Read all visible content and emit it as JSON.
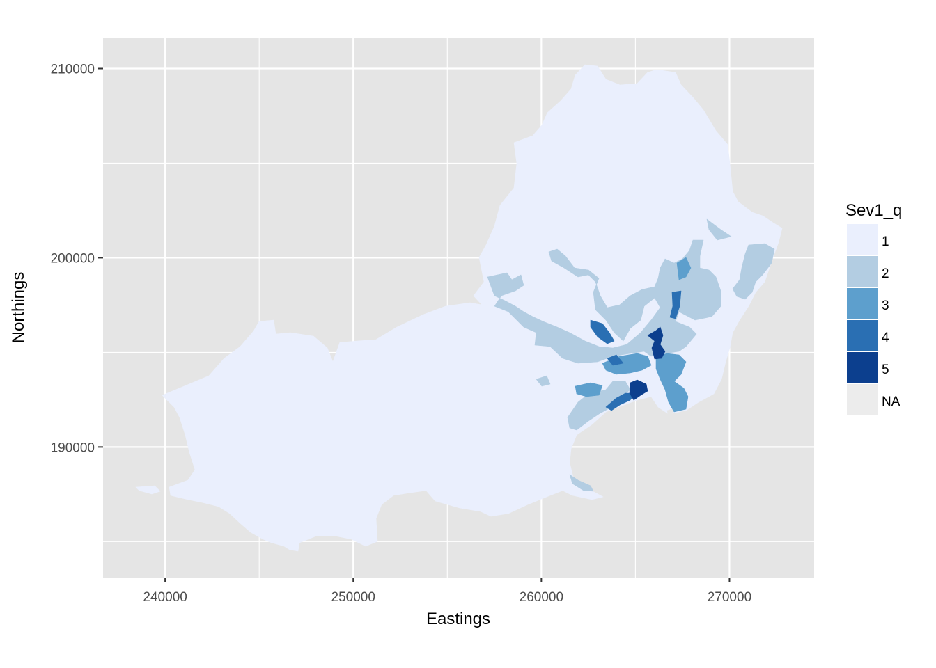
{
  "chart_data": {
    "type": "choropleth-map",
    "xlabel": "Eastings",
    "ylabel": "Northings",
    "xlim": [
      236700,
      274500
    ],
    "ylim": [
      183100,
      211600
    ],
    "x_ticks": [
      240000,
      250000,
      260000,
      270000
    ],
    "x_tick_labels": [
      "240000",
      "250000",
      "260000",
      "270000"
    ],
    "y_ticks": [
      190000,
      200000,
      210000
    ],
    "y_tick_labels": [
      "190000",
      "200000",
      "210000"
    ],
    "grid": true,
    "legend": {
      "title": "Sev1_q",
      "position": "right",
      "entries": [
        {
          "label": "1",
          "color": "#eaeffd"
        },
        {
          "label": "2",
          "color": "#b3cde2"
        },
        {
          "label": "3",
          "color": "#5d9fcd"
        },
        {
          "label": "4",
          "color": "#2a6fb3"
        },
        {
          "label": "5",
          "color": "#0c3f8e"
        },
        {
          "label": "NA",
          "color": "#ececec"
        }
      ]
    },
    "background_color": "#e5e5e5",
    "grid_color": "#ffffff"
  }
}
